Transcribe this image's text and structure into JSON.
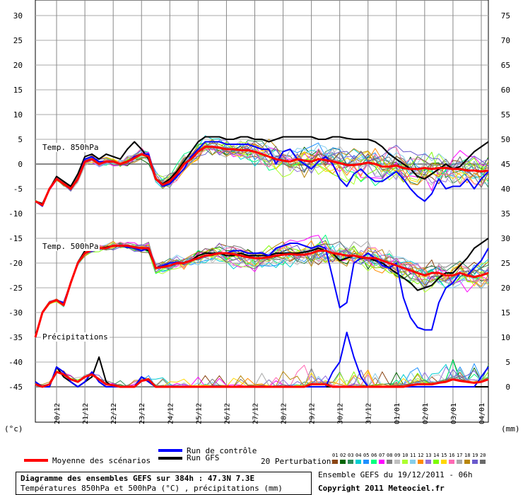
{
  "chart_data": {
    "type": "line",
    "left_axis_unit": "(°c)",
    "right_axis_unit": "(mm)",
    "left_ticks": [
      30,
      25,
      20,
      15,
      10,
      5,
      0,
      -5,
      -10,
      -15,
      -20,
      -25,
      -30,
      -35,
      -40,
      -45
    ],
    "right_ticks": [
      75,
      70,
      65,
      60,
      55,
      50,
      45,
      40,
      35,
      30,
      25,
      20,
      15,
      10,
      5,
      0
    ],
    "left_range": [
      -45,
      30
    ],
    "right_range": [
      0,
      75
    ],
    "x_ticks": [
      "20/12",
      "21/12",
      "22/12",
      "23/12",
      "24/12",
      "25/12",
      "26/12",
      "27/12",
      "28/12",
      "29/12",
      "30/12",
      "31/12",
      "01/01",
      "02/01",
      "03/01",
      "04/01"
    ],
    "x_range_hours": [
      0,
      384
    ],
    "x_step_hours": 6,
    "labels": {
      "t850": "Temp. 850hPa",
      "t500": "Temp. 500hPa",
      "precip": "Précipitations"
    },
    "mean_850": [
      -7.5,
      -8.3,
      -5,
      -3,
      -4,
      -5,
      -3,
      0.5,
      1,
      0,
      0.5,
      0.5,
      0,
      0.5,
      1.2,
      2,
      1.5,
      -3,
      -4.2,
      -3.5,
      -2,
      0,
      1,
      2.5,
      3.5,
      3.5,
      3.3,
      3,
      3,
      2.8,
      2.8,
      2.5,
      2,
      1.5,
      1,
      0.7,
      0.5,
      1,
      0.7,
      0.5,
      1,
      0.8,
      0.5,
      0.2,
      -0.2,
      -0.2,
      0,
      0.3,
      0,
      -0.5,
      -0.5,
      -0.3,
      -0.8,
      -1,
      -1,
      -0.8,
      -1,
      -0.8,
      -0.8,
      -1,
      -1,
      -1.3,
      -1.3,
      -1.5,
      -1.3
    ],
    "control_850": [
      -7.5,
      -8.5,
      -5,
      -3,
      -4,
      -5,
      -3,
      1,
      1.5,
      0.5,
      0.5,
      0.5,
      0,
      0.5,
      1.5,
      2,
      2,
      -3,
      -4.5,
      -4,
      -2.5,
      -1,
      1.5,
      3,
      4.5,
      4.5,
      4.5,
      4,
      4,
      4,
      4,
      3.5,
      3,
      3,
      0,
      2.5,
      3,
      1,
      0,
      -1,
      0.5,
      1.5,
      0,
      -3,
      -4.5,
      -2,
      -1,
      -2.5,
      -3.5,
      -3.5,
      -2.5,
      -1.5,
      -3,
      -5,
      -6.5,
      -7.5,
      -6,
      -3,
      -5,
      -4.5,
      -4.5,
      -3,
      -5,
      -3,
      -1.5
    ],
    "gfs_850": [
      -7.5,
      -8,
      -5,
      -2.5,
      -3.5,
      -4.5,
      -2,
      1.5,
      2,
      1,
      2,
      1.5,
      1,
      3,
      4.5,
      3,
      1,
      -3,
      -4,
      -3,
      -1.5,
      0.5,
      2.5,
      4.5,
      5.5,
      5.5,
      5.5,
      5,
      5,
      5.5,
      5.5,
      5,
      5,
      4.5,
      5,
      5.5,
      5.5,
      5.5,
      5.5,
      5.5,
      5,
      5,
      5.5,
      5.5,
      5.2,
      5,
      5,
      5,
      4.5,
      3.5,
      2,
      1,
      0,
      -1,
      -2.5,
      -3,
      -2,
      -1,
      0,
      -1,
      -0.5,
      1,
      2.5,
      3.5,
      4.5
    ],
    "mean_500": [
      -35,
      -30,
      -28,
      -27.5,
      -28.5,
      -24,
      -20,
      -18,
      -17.3,
      -17,
      -17,
      -16.5,
      -16.5,
      -16.5,
      -16.8,
      -17,
      -17,
      -21,
      -20.8,
      -20.5,
      -20,
      -20,
      -19.5,
      -19,
      -18.5,
      -18.3,
      -18,
      -18,
      -18.2,
      -18.5,
      -18.8,
      -19,
      -19,
      -18.8,
      -18.5,
      -18.3,
      -18.2,
      -18.3,
      -18.3,
      -18,
      -17.5,
      -17.5,
      -18,
      -18.2,
      -18.5,
      -18.5,
      -18.8,
      -19,
      -19,
      -19.5,
      -20,
      -20.5,
      -21,
      -21.5,
      -22,
      -22.5,
      -22,
      -22,
      -22.5,
      -22.5,
      -22,
      -22.5,
      -22.8,
      -22.5,
      -22
    ],
    "control_500": [
      -35,
      -30,
      -28,
      -27.5,
      -28,
      -24,
      -20,
      -18,
      -17.5,
      -17,
      -17,
      -16.5,
      -16.5,
      -16.8,
      -17,
      -17.5,
      -17,
      -21,
      -20.5,
      -20,
      -19.8,
      -20,
      -19.5,
      -19,
      -18.5,
      -18.2,
      -18,
      -18,
      -17.5,
      -17.5,
      -18,
      -18,
      -18,
      -18.5,
      -17,
      -16.5,
      -16,
      -16,
      -16.5,
      -17,
      -16.5,
      -17,
      -23,
      -29,
      -28,
      -20,
      -19,
      -18,
      -19,
      -20.5,
      -21,
      -20,
      -27,
      -31,
      -33,
      -33.5,
      -33.5,
      -28,
      -25,
      -24,
      -22,
      -22.5,
      -21,
      -19.5,
      -17
    ],
    "gfs_500": [
      -35,
      -30,
      -28,
      -27.5,
      -28.5,
      -24,
      -20,
      -17.5,
      -17,
      -17,
      -16.8,
      -16.5,
      -16.5,
      -16.5,
      -16.8,
      -17,
      -17.5,
      -21,
      -20.5,
      -20.5,
      -20,
      -20,
      -19.5,
      -18.5,
      -18,
      -18,
      -18,
      -18.5,
      -18.5,
      -18,
      -18.5,
      -18.5,
      -18.5,
      -18.5,
      -18,
      -18,
      -18,
      -18,
      -17.8,
      -17.5,
      -17,
      -17.5,
      -18,
      -19.5,
      -19,
      -18.5,
      -19,
      -19,
      -19.5,
      -20,
      -21,
      -22,
      -23,
      -24,
      -25.5,
      -25,
      -24.5,
      -23,
      -22,
      -22,
      -20.5,
      -19,
      -17,
      -16,
      -15
    ],
    "mean_precip": [
      0.5,
      0,
      0.5,
      3,
      2.5,
      1.5,
      1,
      2,
      2.5,
      1.5,
      0.5,
      0.3,
      0,
      0,
      0,
      1.2,
      1.5,
      0,
      0,
      0,
      0,
      0,
      0,
      0,
      0,
      0,
      0,
      0,
      0,
      0,
      0,
      0,
      0,
      0,
      0,
      0,
      0,
      0,
      0,
      0.5,
      0.5,
      0.5,
      0,
      0,
      0,
      0,
      0,
      0,
      0,
      0,
      0,
      0,
      0,
      0.3,
      0.5,
      0.5,
      0.5,
      0.8,
      1,
      1.5,
      1.2,
      1,
      0.8,
      1,
      1.5
    ],
    "control_precip": [
      1,
      0,
      0,
      4,
      3,
      1,
      0,
      1,
      3,
      1,
      0,
      0,
      0,
      0,
      0,
      2,
      1,
      0,
      0,
      0,
      0,
      0,
      0,
      0,
      0,
      0,
      0,
      0,
      0,
      0,
      0,
      0,
      0,
      0,
      0,
      0,
      0,
      0,
      0,
      0,
      0,
      0,
      3,
      5,
      11,
      6,
      2,
      0,
      0,
      0,
      0,
      0,
      0,
      0,
      0,
      0,
      0,
      0,
      0,
      0,
      0,
      0,
      0,
      2,
      4
    ],
    "gfs_precip": [
      1,
      0,
      0,
      4,
      2,
      1,
      0,
      1,
      2,
      6,
      1,
      0,
      0,
      0,
      0,
      2,
      1,
      0,
      0,
      0,
      0,
      0,
      0,
      0,
      0,
      0,
      0,
      0,
      0,
      0,
      0,
      0,
      0,
      0,
      0,
      0,
      0,
      0,
      0,
      0,
      0,
      0,
      0,
      0,
      0,
      0,
      0,
      0,
      0,
      0,
      0,
      0,
      0,
      0,
      0,
      0,
      0,
      0,
      0,
      0,
      0,
      0,
      0,
      0,
      0
    ]
  },
  "legend": {
    "mean_label": "Moyenne des scénarios",
    "control_label": "Run de contrôle",
    "gfs_label": "Run GFS",
    "perturbations_label": "20 Perturbations",
    "perturbation_numbers": [
      "01",
      "02",
      "03",
      "04",
      "05",
      "06",
      "07",
      "08",
      "09",
      "10",
      "11",
      "12",
      "13",
      "14",
      "15",
      "16",
      "17",
      "18",
      "19",
      "20"
    ],
    "perturbation_colors": [
      "#8b4513",
      "#006400",
      "#2e8b57",
      "#00ced1",
      "#1e90ff",
      "#00ff7f",
      "#ff00ff",
      "#808080",
      "#c0c0c0",
      "#adff2f",
      "#87ceeb",
      "#ff8c00",
      "#9370db",
      "#7cfc00",
      "#ffd700",
      "#ff69b4",
      "#a9a9a9",
      "#b8860b",
      "#6a5acd",
      "#696969"
    ],
    "colors": {
      "mean": "#ff0000",
      "control": "#0000ff",
      "gfs": "#000000"
    }
  },
  "footer": {
    "title": "Diagramme des ensembles GEFS sur 384h : 47.3N 7.3E",
    "subtitle": "Températures 850hPa et 500hPa (°C) , précipitations (mm)",
    "run_info": "Ensemble GEFS du 19/12/2011 - 06h",
    "copyright": "Copyright 2011 Meteociel.fr"
  }
}
